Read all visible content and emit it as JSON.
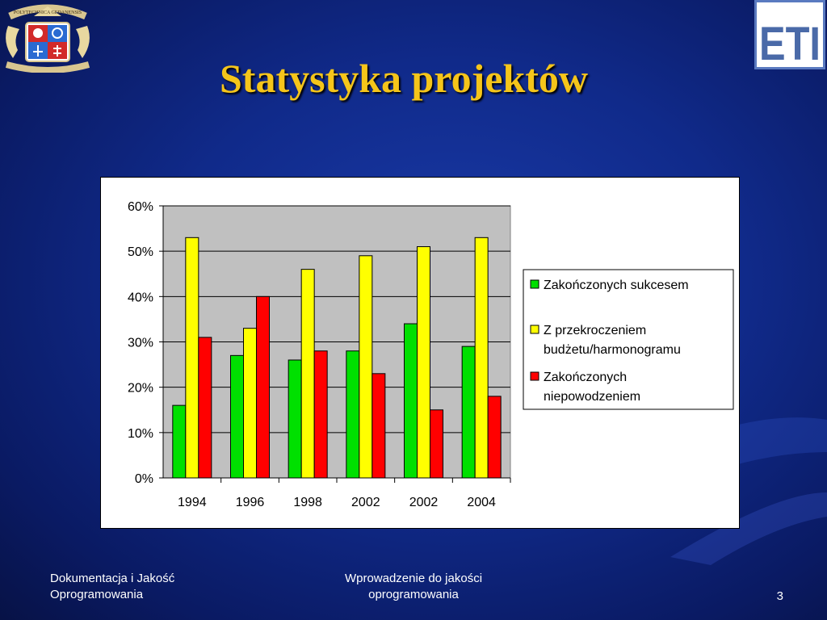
{
  "slide": {
    "title": "Statystyka projektów",
    "footer_left": "Dokumentacja i Jakość Oprogramowania",
    "footer_center": "Wprowadzenie do jakości oprogramowania",
    "page_number": "3"
  },
  "logos": {
    "left": {
      "text": "POLYTECHNICA GEDANENSIS"
    },
    "right": {
      "text": "ETI"
    }
  },
  "colors": {
    "title": "#f5c51a",
    "background": "#102a8a",
    "plot_area": "#c0c0c0",
    "series": [
      "#00e000",
      "#ffff00",
      "#ff0000"
    ]
  },
  "chart_data": {
    "type": "bar",
    "categories": [
      "1994",
      "1996",
      "1998",
      "2002",
      "2002",
      "2004"
    ],
    "series": [
      {
        "name": "Zakończonych sukcesem",
        "values": [
          16,
          27,
          26,
          28,
          34,
          29
        ]
      },
      {
        "name": "Z przekroczeniem budżetu/harmonogramu",
        "values": [
          53,
          33,
          46,
          49,
          51,
          53
        ]
      },
      {
        "name": "Zakończonych niepowodzeniem",
        "values": [
          31,
          40,
          28,
          23,
          15,
          18
        ]
      }
    ],
    "y_ticks": [
      "0%",
      "10%",
      "20%",
      "30%",
      "40%",
      "50%",
      "60%"
    ],
    "ylim": [
      0,
      60
    ],
    "grid": true,
    "legend": {
      "position": "right",
      "entries": [
        {
          "lines": [
            "Zakończonych sukcesem"
          ]
        },
        {
          "lines": [
            "Z przekroczeniem",
            "budżetu/harmonogramu"
          ]
        },
        {
          "lines": [
            "Zakończonych",
            "niepowodzeniem"
          ]
        }
      ]
    }
  }
}
